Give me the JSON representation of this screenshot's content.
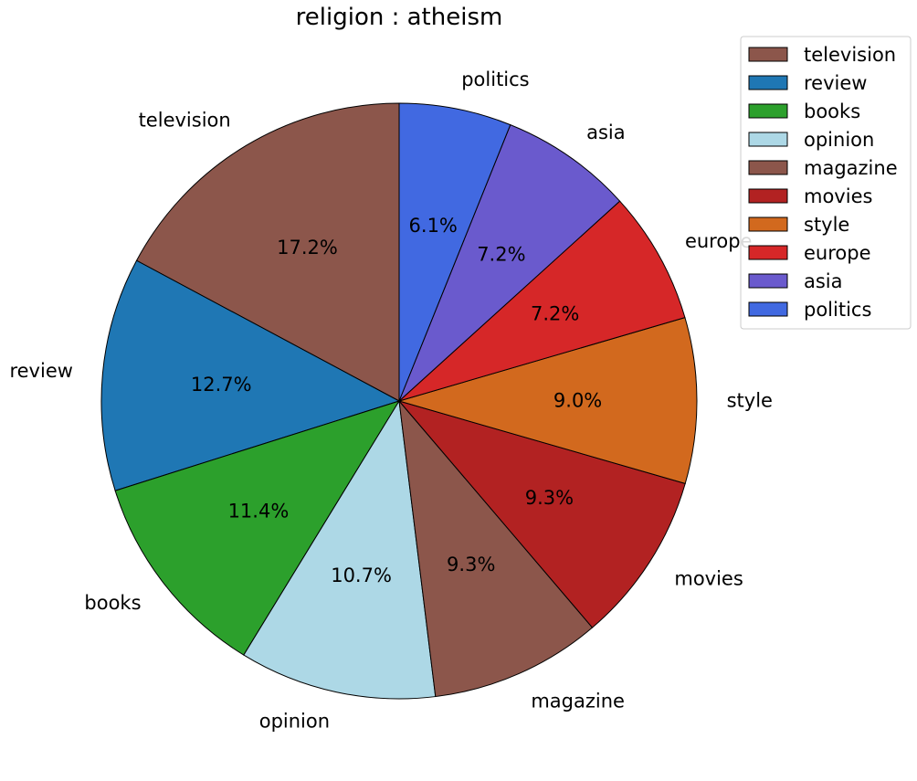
{
  "chart_data": {
    "type": "pie",
    "title": "religion : atheism",
    "start_angle_deg": 90,
    "direction": "counterclockwise",
    "legend_position": "top-right",
    "slices": [
      {
        "label": "television",
        "pct_label": "17.2%",
        "value": 17.2,
        "color": "#8c564b"
      },
      {
        "label": "review",
        "pct_label": "12.7%",
        "value": 12.7,
        "color": "#1f77b4"
      },
      {
        "label": "books",
        "pct_label": "11.4%",
        "value": 11.4,
        "color": "#2ca02c"
      },
      {
        "label": "opinion",
        "pct_label": "10.7%",
        "value": 10.7,
        "color": "#add8e6"
      },
      {
        "label": "magazine",
        "pct_label": "9.3%",
        "value": 9.3,
        "color": "#8c564b"
      },
      {
        "label": "movies",
        "pct_label": "9.3%",
        "value": 9.3,
        "color": "#b22222"
      },
      {
        "label": "style",
        "pct_label": "9.0%",
        "value": 9.0,
        "color": "#d2691e"
      },
      {
        "label": "europe",
        "pct_label": "7.2%",
        "value": 7.2,
        "color": "#d62728"
      },
      {
        "label": "asia",
        "pct_label": "7.2%",
        "value": 7.2,
        "color": "#6a5acd"
      },
      {
        "label": "politics",
        "pct_label": "6.1%",
        "value": 6.1,
        "color": "#4169e1"
      }
    ]
  }
}
